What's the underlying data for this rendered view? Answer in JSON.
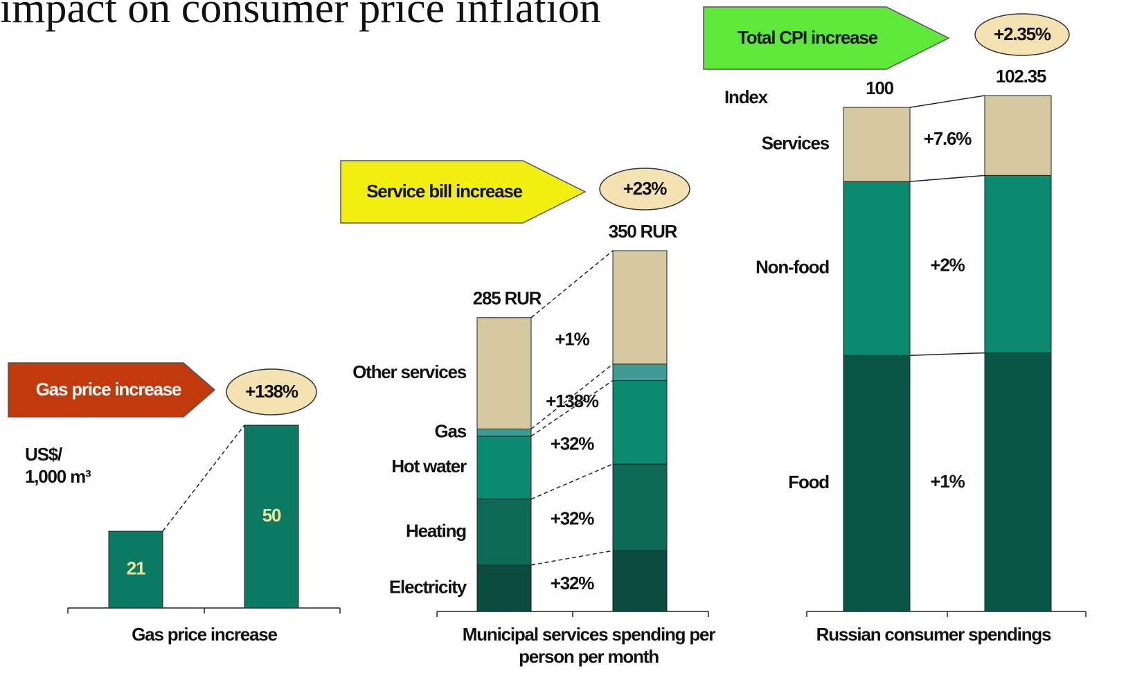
{
  "title": "impact on consumer price inflation",
  "chart_data": [
    {
      "type": "bar",
      "banner": "Gas price increase",
      "banner_color": "#c23a0c",
      "change_label": "+138%",
      "y_label": [
        "US$/",
        "1,000 m³"
      ],
      "x_label": "Gas price increase",
      "values": [
        21,
        50
      ],
      "color": "#0b7a62"
    },
    {
      "type": "stacked_bar",
      "banner": "Service bill increase",
      "banner_color": "#f2ef10",
      "change_label": "+23%",
      "x_label": [
        "Municipal services spending per",
        "person per month"
      ],
      "totals": [
        285,
        350
      ],
      "total_labels": [
        "285 RUR",
        "350 RUR"
      ],
      "series": [
        {
          "name": "Electricity",
          "color": "#0a4c3e",
          "values": [
            45,
            59
          ],
          "change": "+32%"
        },
        {
          "name": "Heating",
          "color": "#0c6a56",
          "values": [
            64,
            84
          ],
          "change": "+32%"
        },
        {
          "name": "Hot water",
          "color": "#0c8a70",
          "values": [
            61,
            81
          ],
          "change": "+32%"
        },
        {
          "name": "Gas",
          "color": "#3d9a94",
          "values": [
            7,
            16
          ],
          "change": "+138%"
        },
        {
          "name": "Other services",
          "color": "#d6c9a0",
          "values": [
            108,
            110
          ],
          "change": "+1%"
        }
      ]
    },
    {
      "type": "stacked_bar",
      "banner": "Total CPI increase",
      "banner_color": "#5ee83a",
      "change_label": "+2.35%",
      "y_label": "Index",
      "x_label": "Russian consumer spendings",
      "totals": [
        100,
        102.35
      ],
      "series": [
        {
          "name": "Food",
          "color": "#0a5646",
          "values": [
            50.8,
            51.3
          ],
          "change": "+1%"
        },
        {
          "name": "Non-food",
          "color": "#0c8a70",
          "values": [
            34.5,
            35.2
          ],
          "change": "+2%"
        },
        {
          "name": "Services",
          "color": "#d6c9a0",
          "values": [
            14.7,
            15.85
          ],
          "change": "+7.6%"
        }
      ]
    }
  ]
}
